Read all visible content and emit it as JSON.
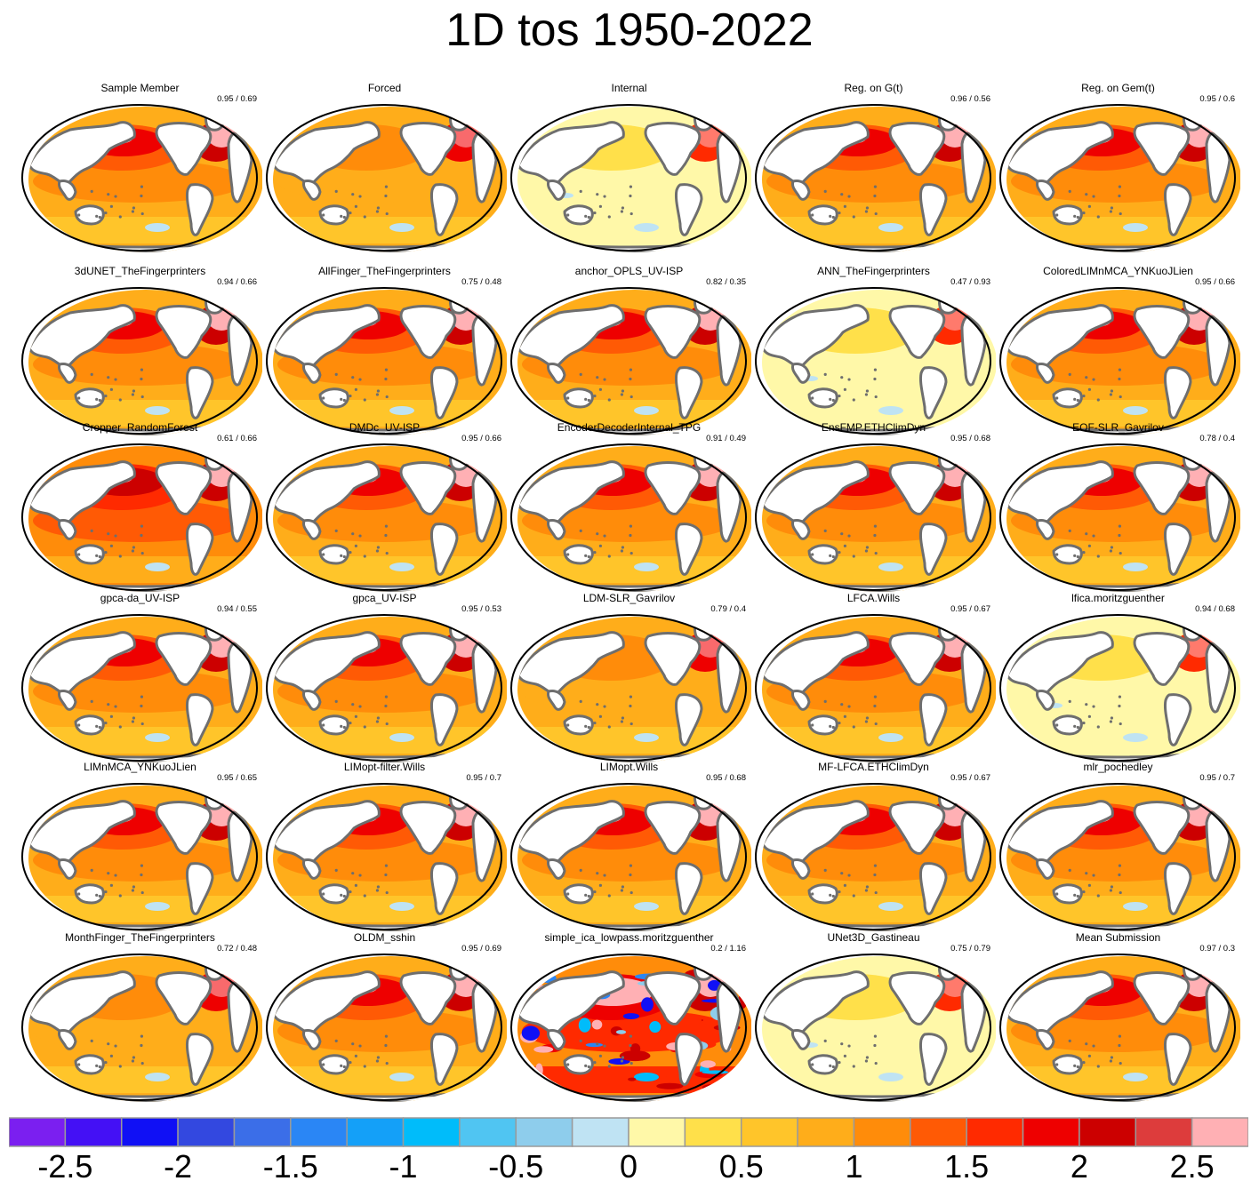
{
  "chart_data": {
    "type": "heatmap",
    "title": "1D tos 1950-2022",
    "projection": "global map (Pacific-centered)",
    "colorbar": {
      "ticks": [
        "-2.5",
        "-2",
        "-1.5",
        "-1",
        "-0.5",
        "0",
        "0.5",
        "1",
        "1.5",
        "2",
        "2.5"
      ],
      "levels": [
        -2.75,
        -2.5,
        -2.25,
        -2.0,
        -1.75,
        -1.5,
        -1.25,
        -1.0,
        -0.75,
        -0.5,
        -0.25,
        0.0,
        0.25,
        0.5,
        0.75,
        1.0,
        1.25,
        1.5,
        1.75,
        2.0,
        2.25,
        2.5,
        2.75
      ],
      "colors": [
        "#7b1ff0",
        "#4410f5",
        "#1010f5",
        "#3348e0",
        "#3b6ee8",
        "#2a86f5",
        "#14a0f8",
        "#00bcfa",
        "#50c5f2",
        "#8ecdec",
        "#bfe3f3",
        "#fff8a8",
        "#ffe04a",
        "#ffc52a",
        "#ffad1a",
        "#ff8c0a",
        "#ff5a05",
        "#ff2a00",
        "#ee0000",
        "#cc0000",
        "#dd3c3c",
        "#ffb0b4"
      ]
    },
    "panels": [
      {
        "name": "Sample Member",
        "score": "0.95 / 0.69",
        "warming_level": "strong"
      },
      {
        "name": "Forced",
        "score": "",
        "warming_level": "moderate"
      },
      {
        "name": "Internal",
        "score": "",
        "warming_level": "weak"
      },
      {
        "name": "Reg. on G(t)",
        "score": "0.96 / 0.56",
        "warming_level": "strong"
      },
      {
        "name": "Reg. on Gem(t)",
        "score": "0.95 / 0.6",
        "warming_level": "strong"
      },
      {
        "name": "3dUNET_TheFingerprinters",
        "score": "0.94 / 0.66",
        "warming_level": "strong"
      },
      {
        "name": "AllFinger_TheFingerprinters",
        "score": "0.75 / 0.48",
        "warming_level": "strong"
      },
      {
        "name": "anchor_OPLS_UV-ISP",
        "score": "0.82 / 0.35",
        "warming_level": "strong"
      },
      {
        "name": "ANN_TheFingerprinters",
        "score": "0.47 / 0.93",
        "warming_level": "weak"
      },
      {
        "name": "ColoredLIMnMCA_YNKuoJLien",
        "score": "0.95 / 0.66",
        "warming_level": "strong"
      },
      {
        "name": "Cropper_RandomForest",
        "score": "0.61 / 0.66",
        "warming_level": "very strong"
      },
      {
        "name": "DMDc_UV-ISP",
        "score": "0.95 / 0.66",
        "warming_level": "strong"
      },
      {
        "name": "EncoderDecoderInternal_TPG",
        "score": "0.91 / 0.49",
        "warming_level": "strong"
      },
      {
        "name": "EnsFMP.ETHClimDyn",
        "score": "0.95 / 0.68",
        "warming_level": "strong"
      },
      {
        "name": "EOF-SLR_Gavrilov",
        "score": "0.78 / 0.4",
        "warming_level": "strong"
      },
      {
        "name": "gpca-da_UV-ISP",
        "score": "0.94 / 0.55",
        "warming_level": "strong"
      },
      {
        "name": "gpca_UV-ISP",
        "score": "0.95 / 0.53",
        "warming_level": "strong"
      },
      {
        "name": "LDM-SLR_Gavrilov",
        "score": "0.79 / 0.4",
        "warming_level": "moderate"
      },
      {
        "name": "LFCA.Wills",
        "score": "0.95 / 0.67",
        "warming_level": "strong"
      },
      {
        "name": "lfica.moritzguenther",
        "score": "0.94 / 0.68",
        "warming_level": "weak"
      },
      {
        "name": "LIMnMCA_YNKuoJLien",
        "score": "0.95 / 0.65",
        "warming_level": "strong"
      },
      {
        "name": "LIMopt-filter.Wills",
        "score": "0.95 / 0.7",
        "warming_level": "strong"
      },
      {
        "name": "LIMopt.Wills",
        "score": "0.95 / 0.68",
        "warming_level": "strong"
      },
      {
        "name": "MF-LFCA.ETHClimDyn",
        "score": "0.95 / 0.67",
        "warming_level": "strong"
      },
      {
        "name": "mlr_pochedley",
        "score": "0.95 / 0.7",
        "warming_level": "strong"
      },
      {
        "name": "MonthFinger_TheFingerprinters",
        "score": "0.72 / 0.48",
        "warming_level": "moderate"
      },
      {
        "name": "OLDM_sshin",
        "score": "0.95 / 0.69",
        "warming_level": "strong"
      },
      {
        "name": "simple_ica_lowpass.moritzguenther",
        "score": "0.2 / 1.16",
        "warming_level": "noisy"
      },
      {
        "name": "UNet3D_Gastineau",
        "score": "0.75 / 0.79",
        "warming_level": "weak"
      },
      {
        "name": "Mean Submission",
        "score": "0.97 / 0.3",
        "warming_level": "strong"
      }
    ]
  }
}
